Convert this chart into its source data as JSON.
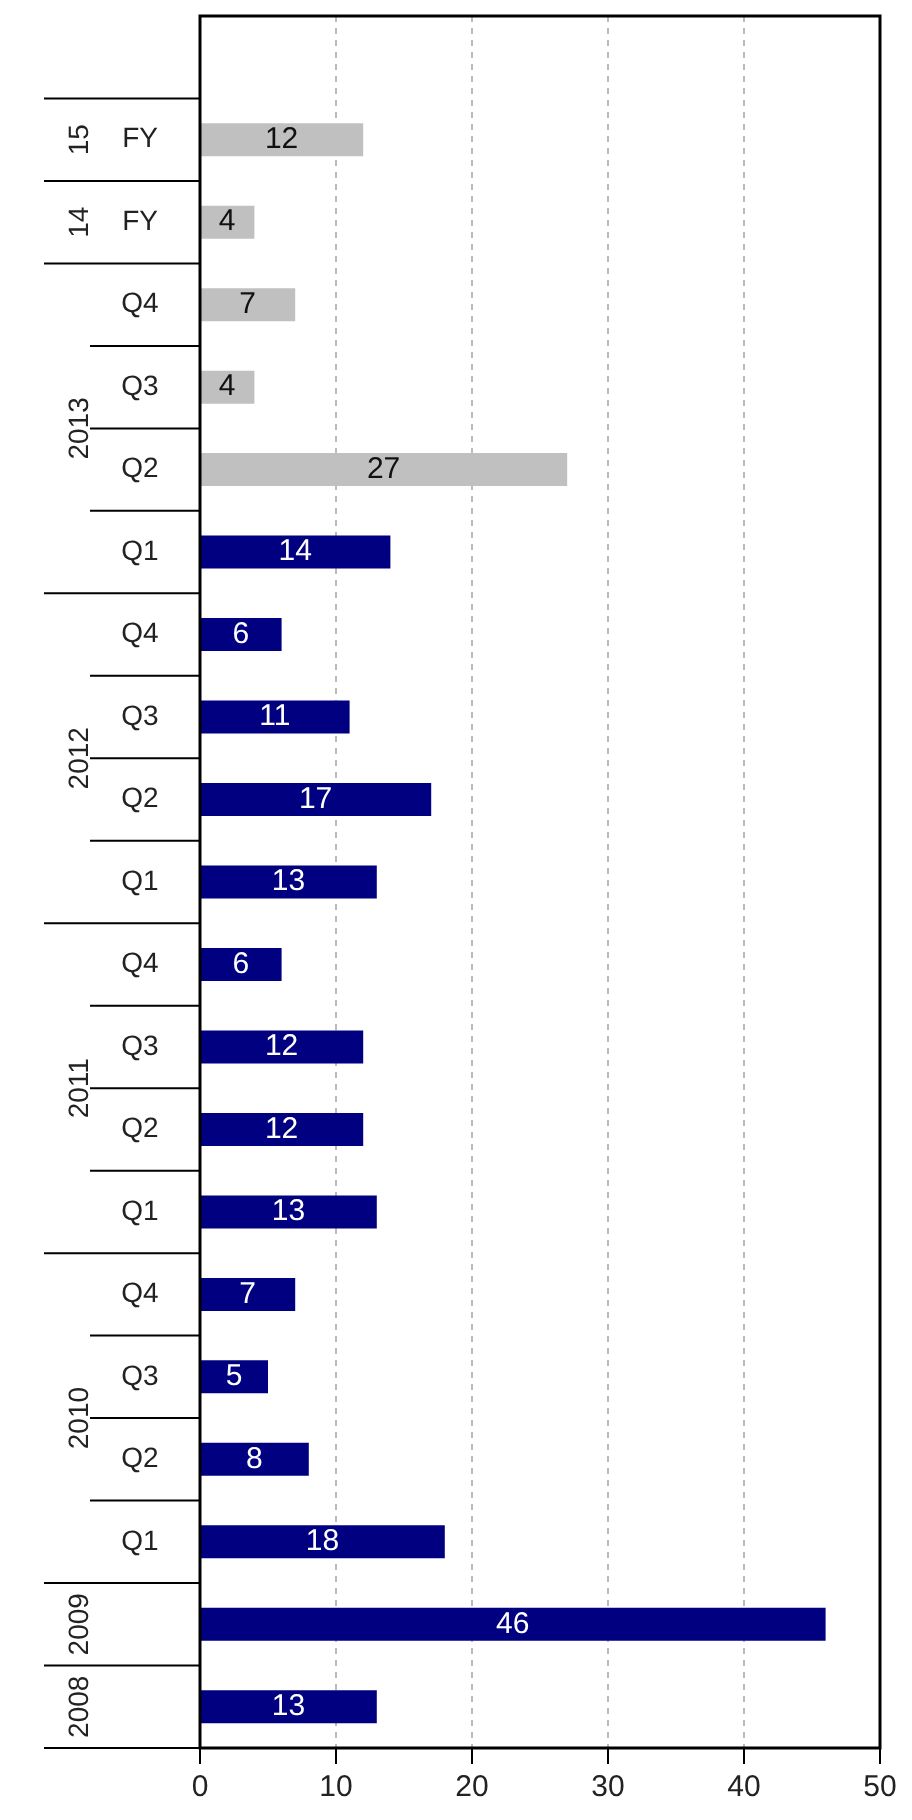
{
  "chart_data": {
    "type": "bar",
    "orientation": "horizontal",
    "categories": [
      null,
      "FY",
      "FY",
      "Q4",
      "Q3",
      "Q2",
      "Q1",
      "Q4",
      "Q3",
      "Q2",
      "Q1",
      "Q4",
      "Q3",
      "Q2",
      "Q1",
      "Q4",
      "Q3",
      "Q2",
      "Q1",
      null,
      null
    ],
    "values": [
      null,
      12,
      4,
      7,
      4,
      27,
      14,
      6,
      11,
      17,
      13,
      6,
      12,
      12,
      13,
      7,
      5,
      8,
      18,
      46,
      13
    ],
    "colors": [
      "#c0c0c0",
      "#c0c0c0",
      "#c0c0c0",
      "#c0c0c0",
      "#c0c0c0",
      "#c0c0c0",
      "#000080",
      "#000080",
      "#000080",
      "#000080",
      "#000080",
      "#000080",
      "#000080",
      "#000080",
      "#000080",
      "#000080",
      "#000080",
      "#000080",
      "#000080",
      "#000080",
      "#000080"
    ],
    "xlim": [
      0,
      50
    ],
    "xticks": [
      0,
      10,
      20,
      30,
      40,
      50
    ],
    "grid": "x",
    "data_labels": true,
    "legend": false,
    "annotations": [
      "15",
      "14",
      "2013",
      "2012",
      "2011",
      "2010",
      "2009",
      "2008"
    ]
  }
}
